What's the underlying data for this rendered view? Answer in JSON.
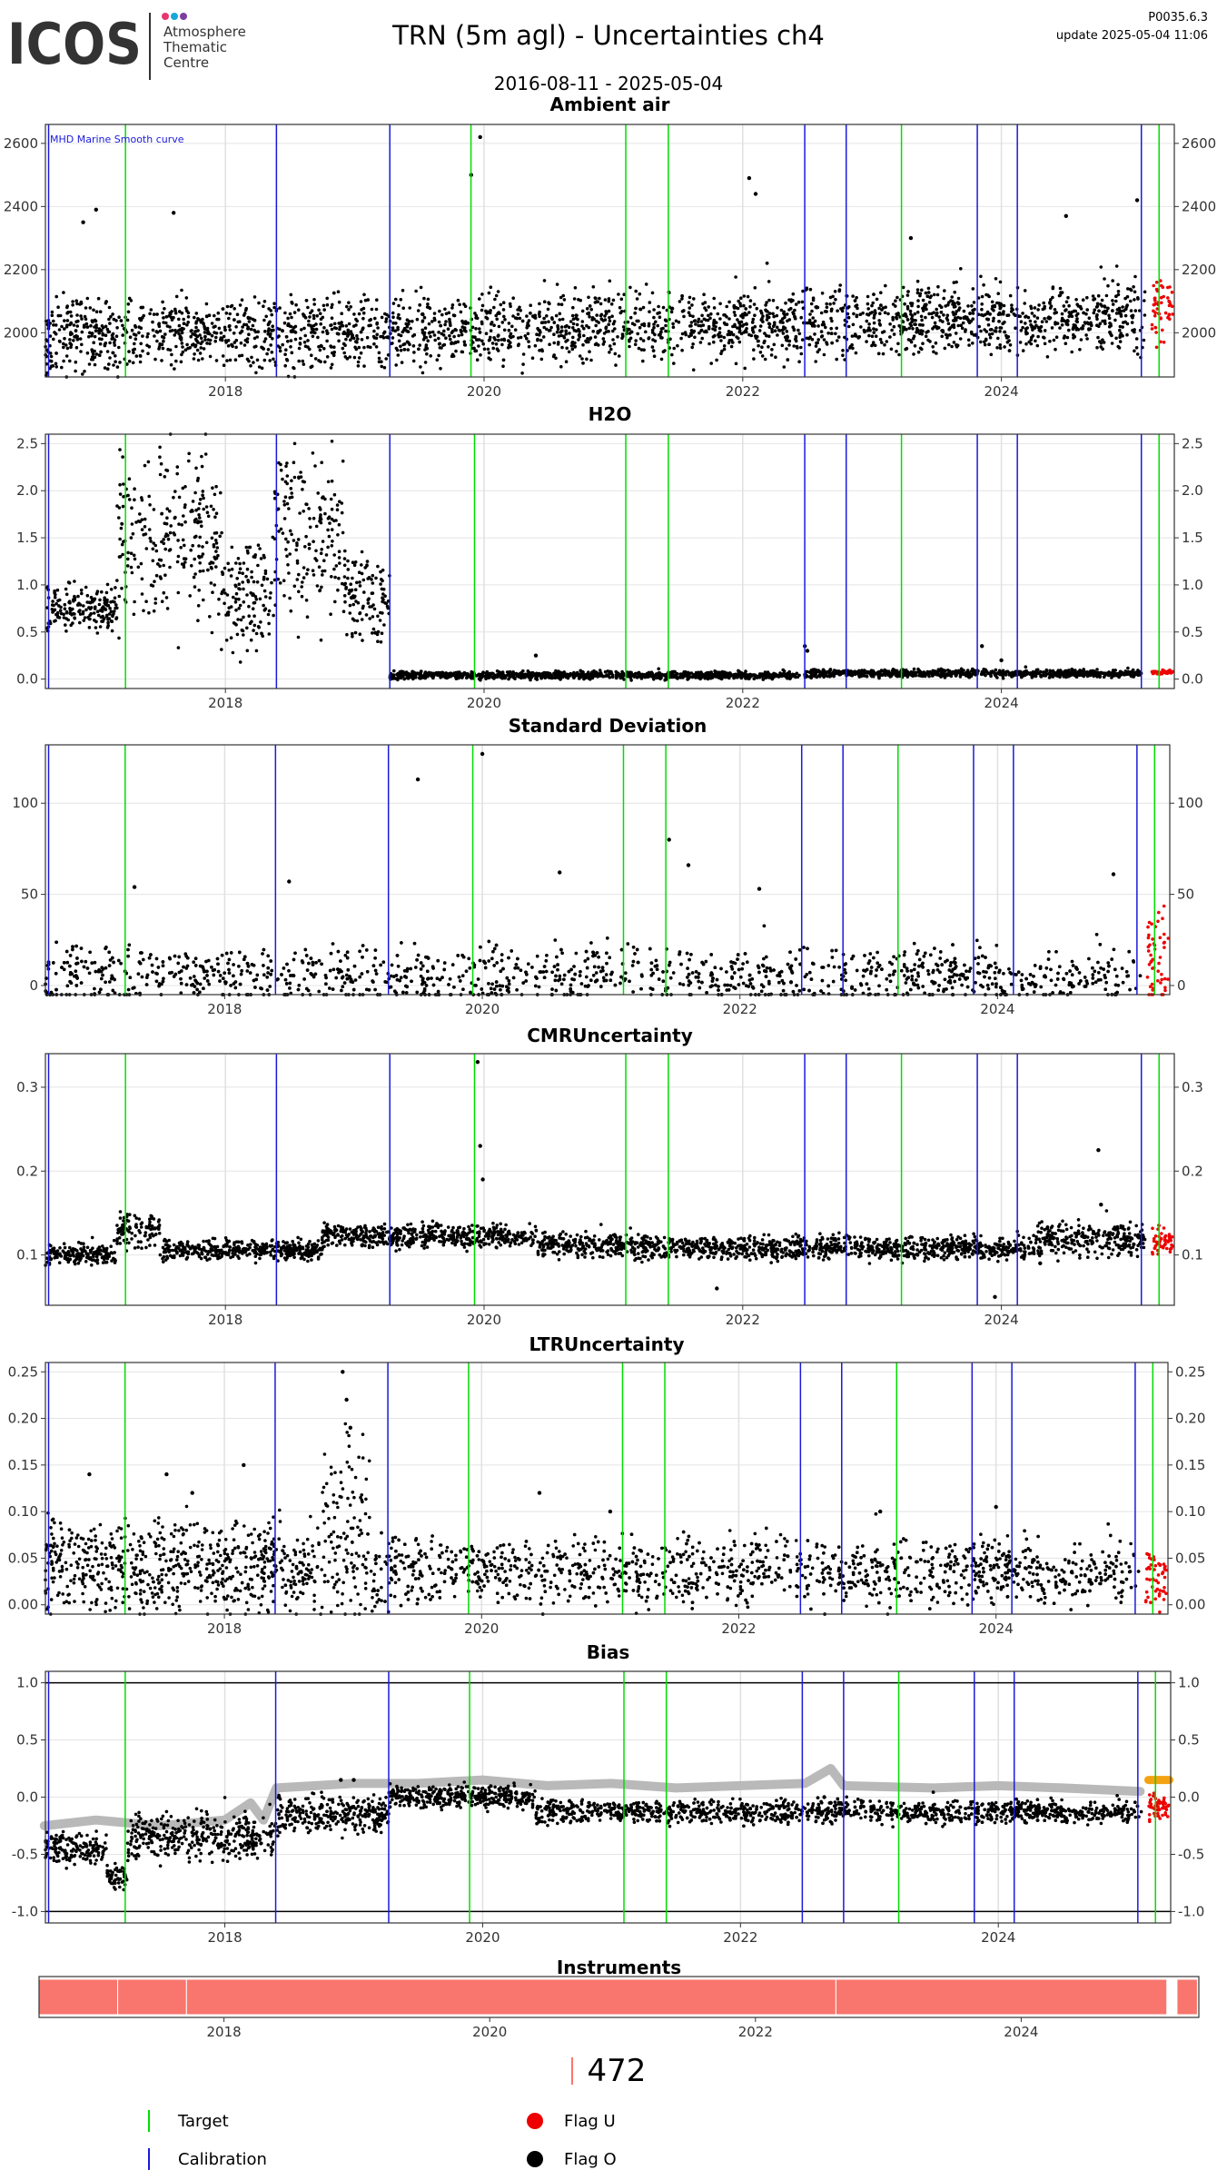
{
  "header": {
    "logo_text": "ICOS",
    "logo_subtext": [
      "Atmosphere",
      "Thematic",
      "Centre"
    ],
    "title": "TRN  (5m agl) - Uncertainties ch4",
    "date_range": "2016-08-11 - 2025-05-04",
    "version": "P0035.6.3",
    "updated": "update  2025-05-04 11:06"
  },
  "colors": {
    "target": "#00dd00",
    "calibration": "#1a1adb",
    "flag_u": "#ee0000",
    "flag_o": "#000000",
    "bias_smooth": "#b9b9b9",
    "bias_recent": "#f3a312",
    "instrument": "#f8766d",
    "logo_dots": [
      "#e8356e",
      "#19a6d8",
      "#7c3fa0"
    ]
  },
  "chart_data": [
    {
      "type": "scatter",
      "title": "Ambient air",
      "annotation": "MHD Marine Smooth curve",
      "x_range": [
        "2016-08-11",
        "2025-05-04"
      ],
      "x_ticks": [
        "2018",
        "2020",
        "2022",
        "2024"
      ],
      "y_ticks": [
        "2000",
        "2200",
        "2400",
        "2600"
      ],
      "ylim": [
        1860,
        2660
      ],
      "grid": true,
      "series": [
        {
          "name": "Flag O",
          "color": "#000000",
          "segments": [
            {
              "from": "2016-08-11",
              "to": "2025-02-10",
              "base": 1985,
              "trend": 8,
              "noise": 55,
              "spikes": [
                [
                  2016.9,
                  2350
                ],
                [
                  2017.0,
                  2390
                ],
                [
                  2017.6,
                  2380
                ],
                [
                  2019.9,
                  2500
                ],
                [
                  2019.97,
                  2620
                ],
                [
                  2022.05,
                  2490
                ],
                [
                  2022.1,
                  2440
                ],
                [
                  2023.3,
                  2300
                ],
                [
                  2024.5,
                  2370
                ],
                [
                  2025.05,
                  2420
                ]
              ]
            }
          ]
        },
        {
          "name": "Flag U",
          "color": "#ee0000",
          "segments": [
            {
              "from": "2025-03-02",
              "to": "2025-04-30",
              "base": 2080,
              "trend": 0,
              "noise": 50
            }
          ]
        }
      ],
      "target_lines": [
        "2017-03-25",
        "2019-11-25",
        "2021-02-05",
        "2021-06-05",
        "2023-03-25",
        "2025-03-22"
      ],
      "calibration_lines": [
        "2016-08-20",
        "2018-05-25",
        "2019-04-10",
        "2022-06-25",
        "2022-10-20",
        "2023-10-25",
        "2024-02-15",
        "2025-01-31"
      ]
    },
    {
      "type": "scatter",
      "title": "H2O",
      "x_range": [
        "2016-08-11",
        "2025-05-04"
      ],
      "x_ticks": [
        "2018",
        "2020",
        "2022",
        "2024"
      ],
      "y_ticks": [
        "0.0",
        "0.5",
        "1.0",
        "1.5",
        "2.0",
        "2.5"
      ],
      "ylim": [
        -0.1,
        2.6
      ],
      "grid": true,
      "series": [
        {
          "name": "Flag O",
          "color": "#000000",
          "segments": [
            {
              "from": "2016-08-11",
              "to": "2017-03-01",
              "base": 0.75,
              "trend": 0,
              "noise": 0.12
            },
            {
              "from": "2017-03-01",
              "to": "2017-12-20",
              "base": 1.5,
              "trend": 0,
              "noise": 0.45
            },
            {
              "from": "2017-12-20",
              "to": "2018-05-20",
              "base": 0.85,
              "trend": 0,
              "noise": 0.3
            },
            {
              "from": "2018-05-20",
              "to": "2018-12-01",
              "base": 1.55,
              "trend": 0,
              "noise": 0.45
            },
            {
              "from": "2018-12-01",
              "to": "2019-04-10",
              "base": 0.85,
              "trend": 0,
              "noise": 0.25
            },
            {
              "from": "2019-04-10",
              "to": "2022-06-10",
              "base": 0.04,
              "trend": 0,
              "noise": 0.02,
              "spikes": [
                [
                  2020.4,
                  0.25
                ],
                [
                  2022.48,
                  0.35
                ],
                [
                  2022.5,
                  0.3
                ]
              ]
            },
            {
              "from": "2022-06-25",
              "to": "2025-01-31",
              "base": 0.06,
              "trend": 0,
              "noise": 0.02,
              "spikes": [
                [
                  2023.85,
                  0.35
                ],
                [
                  2024.0,
                  0.2
                ]
              ]
            }
          ]
        },
        {
          "name": "Flag U",
          "color": "#ee0000",
          "segments": [
            {
              "from": "2025-03-02",
              "to": "2025-04-30",
              "base": 0.07,
              "trend": 0,
              "noise": 0.01
            }
          ]
        }
      ],
      "target_lines": [
        "2017-03-25",
        "2019-12-05",
        "2021-02-05",
        "2021-06-05",
        "2023-03-25",
        "2025-03-22"
      ],
      "calibration_lines": [
        "2016-08-20",
        "2018-05-25",
        "2019-04-10",
        "2022-06-25",
        "2022-10-20",
        "2023-10-25",
        "2024-02-15",
        "2025-01-31"
      ]
    },
    {
      "type": "scatter",
      "title": "Standard Deviation",
      "x_range": [
        "2016-08-11",
        "2025-05-04"
      ],
      "x_ticks": [
        "2018",
        "2020",
        "2022",
        "2024"
      ],
      "y_ticks": [
        "0",
        "50",
        "100"
      ],
      "ylim": [
        -5,
        132
      ],
      "grid": true,
      "series": [
        {
          "name": "Flag O",
          "color": "#000000",
          "segments": [
            {
              "from": "2016-08-11",
              "to": "2025-02-10",
              "base": 5,
              "trend": 0,
              "noise": 8,
              "spikes": [
                [
                  2017.3,
                  54
                ],
                [
                  2018.5,
                  57
                ],
                [
                  2019.5,
                  113
                ],
                [
                  2020.0,
                  127
                ],
                [
                  2020.6,
                  62
                ],
                [
                  2021.45,
                  80
                ],
                [
                  2021.6,
                  66
                ],
                [
                  2022.15,
                  53
                ],
                [
                  2024.9,
                  61
                ]
              ]
            }
          ]
        },
        {
          "name": "Flag U",
          "color": "#ee0000",
          "segments": [
            {
              "from": "2025-03-02",
              "to": "2025-04-30",
              "base": 12,
              "trend": 0,
              "noise": 14
            }
          ]
        }
      ],
      "target_lines": [
        "2017-03-25",
        "2019-12-05",
        "2021-02-05",
        "2021-06-05",
        "2023-03-25",
        "2025-03-22"
      ],
      "calibration_lines": [
        "2016-08-20",
        "2018-05-25",
        "2019-04-10",
        "2022-06-25",
        "2022-10-20",
        "2023-10-25",
        "2024-02-15",
        "2025-01-31"
      ]
    },
    {
      "type": "scatter",
      "title": "CMRUncertainty",
      "x_range": [
        "2016-08-11",
        "2025-05-04"
      ],
      "x_ticks": [
        "2018",
        "2020",
        "2022",
        "2024"
      ],
      "y_ticks": [
        "0.1",
        "0.2",
        "0.3"
      ],
      "ylim": [
        0.04,
        0.34
      ],
      "grid": true,
      "series": [
        {
          "name": "Flag O",
          "color": "#000000",
          "segments": [
            {
              "from": "2016-08-11",
              "to": "2017-03-01",
              "base": 0.1,
              "trend": 0,
              "noise": 0.006
            },
            {
              "from": "2017-03-01",
              "to": "2017-07-01",
              "base": 0.13,
              "trend": 0,
              "noise": 0.01
            },
            {
              "from": "2017-07-01",
              "to": "2018-10-01",
              "base": 0.106,
              "trend": 0,
              "noise": 0.006
            },
            {
              "from": "2018-10-01",
              "to": "2020-06-01",
              "base": 0.122,
              "trend": 0,
              "noise": 0.007,
              "spikes": [
                [
                  2019.95,
                  0.33
                ],
                [
                  2019.97,
                  0.23
                ],
                [
                  2019.99,
                  0.19
                ]
              ]
            },
            {
              "from": "2020-06-01",
              "to": "2021-03-01",
              "base": 0.112,
              "trend": 0,
              "noise": 0.007
            },
            {
              "from": "2021-03-01",
              "to": "2024-04-01",
              "base": 0.108,
              "trend": 0,
              "noise": 0.007,
              "spikes": [
                [
                  2021.8,
                  0.06
                ],
                [
                  2023.95,
                  0.05
                ],
                [
                  2024.3,
                  0.09
                ]
              ]
            },
            {
              "from": "2024-04-01",
              "to": "2025-02-10",
              "base": 0.118,
              "trend": 0,
              "noise": 0.01,
              "spikes": [
                [
                  2024.75,
                  0.225
                ],
                [
                  2024.77,
                  0.16
                ]
              ]
            }
          ]
        },
        {
          "name": "Flag U",
          "color": "#ee0000",
          "segments": [
            {
              "from": "2025-03-02",
              "to": "2025-04-30",
              "base": 0.117,
              "trend": 0,
              "noise": 0.008
            }
          ]
        }
      ],
      "target_lines": [
        "2017-03-25",
        "2019-12-05",
        "2021-02-05",
        "2021-06-05",
        "2023-03-25",
        "2025-03-22"
      ],
      "calibration_lines": [
        "2016-08-20",
        "2018-05-25",
        "2019-04-10",
        "2022-06-25",
        "2022-10-20",
        "2023-10-25",
        "2024-02-15",
        "2025-01-31"
      ]
    },
    {
      "type": "scatter",
      "title": "LTRUncertainty",
      "x_range": [
        "2016-08-11",
        "2025-05-04"
      ],
      "x_ticks": [
        "2018",
        "2020",
        "2022",
        "2024"
      ],
      "y_ticks": [
        "0.00",
        "0.05",
        "0.10",
        "0.15",
        "0.20",
        "0.25"
      ],
      "ylim": [
        -0.01,
        0.26
      ],
      "grid": true,
      "series": [
        {
          "name": "Flag O",
          "color": "#000000",
          "segments": [
            {
              "from": "2016-08-11",
              "to": "2018-10-01",
              "base": 0.04,
              "trend": 0,
              "noise": 0.025,
              "spikes": [
                [
                  2016.95,
                  0.14
                ],
                [
                  2017.55,
                  0.14
                ],
                [
                  2017.75,
                  0.12
                ],
                [
                  2018.15,
                  0.15
                ]
              ]
            },
            {
              "from": "2018-10-01",
              "to": "2019-03-01",
              "base": 0.07,
              "trend": 0,
              "noise": 0.05,
              "spikes": [
                [
                  2018.92,
                  0.25
                ],
                [
                  2018.95,
                  0.22
                ],
                [
                  2018.98,
                  0.19
                ]
              ]
            },
            {
              "from": "2019-03-01",
              "to": "2025-02-10",
              "base": 0.035,
              "trend": 0,
              "noise": 0.018,
              "spikes": [
                [
                  2020.45,
                  0.12
                ],
                [
                  2021.0,
                  0.1
                ],
                [
                  2023.1,
                  0.1
                ],
                [
                  2024.0,
                  0.105
                ]
              ]
            }
          ]
        },
        {
          "name": "Flag U",
          "color": "#ee0000",
          "segments": [
            {
              "from": "2025-03-02",
              "to": "2025-04-30",
              "base": 0.03,
              "trend": 0,
              "noise": 0.015
            }
          ]
        }
      ],
      "target_lines": [
        "2017-03-25",
        "2019-11-25",
        "2021-02-05",
        "2021-06-05",
        "2023-03-25",
        "2025-03-22"
      ],
      "calibration_lines": [
        "2016-08-20",
        "2018-05-25",
        "2019-04-10",
        "2022-06-25",
        "2022-10-20",
        "2023-10-25",
        "2024-02-15",
        "2025-01-31"
      ]
    },
    {
      "type": "scatter",
      "title": "Bias",
      "x_range": [
        "2016-08-11",
        "2025-05-04"
      ],
      "x_ticks": [
        "2018",
        "2020",
        "2022",
        "2024"
      ],
      "y_ticks": [
        "-1.0",
        "-0.5",
        "0.0",
        "0.5",
        "1.0"
      ],
      "ylim": [
        -1.1,
        1.1
      ],
      "grid": true,
      "reference_lines": [
        -1.0,
        1.0
      ],
      "smooth_series": {
        "color": "#b9b9b9",
        "points": [
          [
            2016.6,
            -0.25
          ],
          [
            2017.0,
            -0.2
          ],
          [
            2017.5,
            -0.25
          ],
          [
            2018.0,
            -0.2
          ],
          [
            2018.2,
            -0.05
          ],
          [
            2018.3,
            -0.2
          ],
          [
            2018.4,
            0.08
          ],
          [
            2019.0,
            0.12
          ],
          [
            2019.5,
            0.12
          ],
          [
            2020.0,
            0.15
          ],
          [
            2020.5,
            0.1
          ],
          [
            2021.0,
            0.12
          ],
          [
            2021.5,
            0.08
          ],
          [
            2022.0,
            0.1
          ],
          [
            2022.5,
            0.12
          ],
          [
            2022.7,
            0.25
          ],
          [
            2022.8,
            0.1
          ],
          [
            2023.5,
            0.08
          ],
          [
            2024.0,
            0.1
          ],
          [
            2024.5,
            0.08
          ],
          [
            2025.1,
            0.05
          ]
        ]
      },
      "series": [
        {
          "name": "Flag O",
          "color": "#000000",
          "segments": [
            {
              "from": "2016-08-11",
              "to": "2017-02-01",
              "base": -0.45,
              "trend": 0,
              "noise": 0.07
            },
            {
              "from": "2017-02-01",
              "to": "2017-04-01",
              "base": -0.7,
              "trend": 0,
              "noise": 0.06
            },
            {
              "from": "2017-04-01",
              "to": "2018-05-25",
              "base": -0.35,
              "trend": 0,
              "noise": 0.1
            },
            {
              "from": "2018-05-25",
              "to": "2019-04-10",
              "base": -0.15,
              "trend": 0,
              "noise": 0.08,
              "spikes": [
                [
                  2018.9,
                  0.15
                ],
                [
                  2019.0,
                  0.15
                ]
              ]
            },
            {
              "from": "2019-04-10",
              "to": "2020-06-01",
              "base": 0.0,
              "trend": 0,
              "noise": 0.05
            },
            {
              "from": "2020-06-01",
              "to": "2025-02-10",
              "base": -0.13,
              "trend": 0,
              "noise": 0.05,
              "spikes": [
                [
                  2022.65,
                  0.0
                ],
                [
                  2022.7,
                  -0.05
                ]
              ]
            }
          ]
        },
        {
          "name": "Flag U",
          "color": "#ee0000",
          "segments": [
            {
              "from": "2025-03-02",
              "to": "2025-04-30",
              "base": -0.1,
              "trend": 0,
              "noise": 0.06
            }
          ]
        }
      ],
      "recent_smooth": {
        "color": "#f3a312",
        "from": "2025-03-02",
        "to": "2025-04-30",
        "value": 0.15
      },
      "target_lines": [
        "2017-03-25",
        "2019-11-25",
        "2021-02-05",
        "2021-06-05",
        "2023-03-25",
        "2025-03-22"
      ],
      "calibration_lines": [
        "2016-08-20",
        "2018-05-25",
        "2019-04-10",
        "2022-06-25",
        "2022-10-20",
        "2023-10-25",
        "2024-02-15",
        "2025-01-31"
      ]
    },
    {
      "type": "bar",
      "title": "Instruments",
      "x_range": [
        "2016-08-11",
        "2025-05-04"
      ],
      "x_ticks": [
        "2018",
        "2020",
        "2022",
        "2024"
      ],
      "bars": [
        {
          "from": "2016-08-11",
          "to": "2017-03-15",
          "color": "#f8766d"
        },
        {
          "from": "2017-03-15",
          "to": "2017-09-20",
          "color": "#f8766d"
        },
        {
          "from": "2017-09-20",
          "to": "2022-08-10",
          "color": "#f8766d"
        },
        {
          "from": "2022-08-10",
          "to": "2025-02-05",
          "color": "#f8766d"
        },
        {
          "from": "2025-03-05",
          "to": "2025-04-30",
          "color": "#f8766d"
        }
      ]
    }
  ],
  "footer": {
    "instrument_id": "472"
  },
  "legend": [
    {
      "label": "Target",
      "symbol": "line",
      "color": "#00dd00"
    },
    {
      "label": "Calibration",
      "symbol": "line",
      "color": "#1a1adb"
    },
    {
      "label": "Flag U",
      "symbol": "dot",
      "color": "#ee0000"
    },
    {
      "label": "Flag O",
      "symbol": "dot",
      "color": "#000000"
    }
  ]
}
